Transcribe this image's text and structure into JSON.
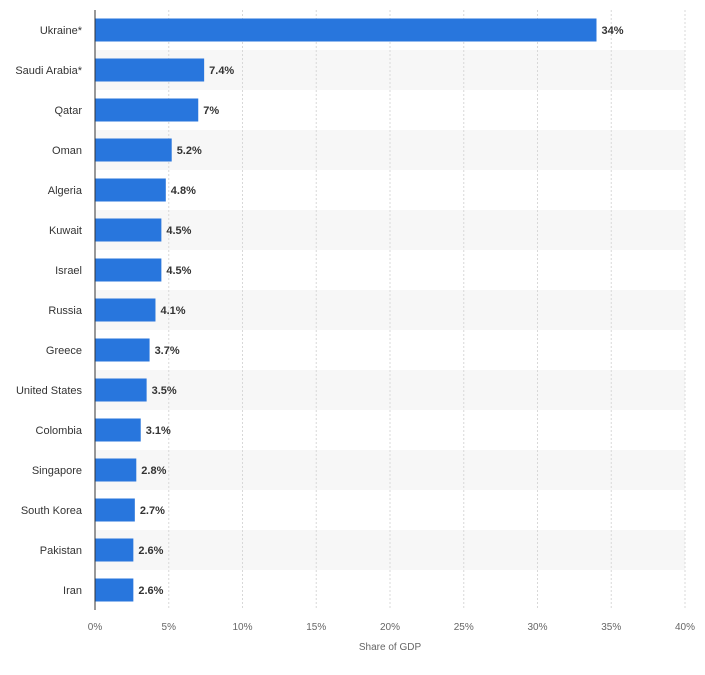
{
  "chart_data": {
    "type": "bar",
    "orientation": "horizontal",
    "categories": [
      "Ukraine*",
      "Saudi Arabia*",
      "Qatar",
      "Oman",
      "Algeria",
      "Kuwait",
      "Israel",
      "Russia",
      "Greece",
      "United States",
      "Colombia",
      "Singapore",
      "South Korea",
      "Pakistan",
      "Iran"
    ],
    "values": [
      34,
      7.4,
      7,
      5.2,
      4.8,
      4.5,
      4.5,
      4.1,
      3.7,
      3.5,
      3.1,
      2.8,
      2.7,
      2.6,
      2.6
    ],
    "value_labels": [
      "34%",
      "7.4%",
      "7%",
      "5.2%",
      "4.8%",
      "4.5%",
      "4.5%",
      "4.1%",
      "3.7%",
      "3.5%",
      "3.1%",
      "2.8%",
      "2.7%",
      "2.6%",
      "2.6%"
    ],
    "xlabel": "Share of GDP",
    "xlim": [
      0,
      40
    ],
    "x_ticks": [
      0,
      5,
      10,
      15,
      20,
      25,
      30,
      35,
      40
    ],
    "x_tick_labels": [
      "0%",
      "5%",
      "10%",
      "15%",
      "20%",
      "25%",
      "30%",
      "35%",
      "40%"
    ],
    "grid": true,
    "bar_color": "#2876dd",
    "band_color": "#f7f7f7",
    "grid_color": "#d8d8d8",
    "axis_color": "#333333"
  }
}
